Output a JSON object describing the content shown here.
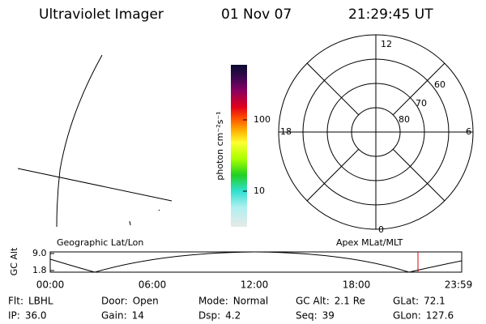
{
  "header": {
    "title": "Ultraviolet Imager",
    "date": "01 Nov 07",
    "time": "21:29:45 UT"
  },
  "map_labels": {
    "geographic": "Geographic Lat/Lon",
    "magnetic": "Apex MLat/MLT"
  },
  "colorbar": {
    "label": "photon cm⁻²s⁻¹",
    "ticks": [
      "100",
      "10"
    ]
  },
  "polar": {
    "mlt_labels": [
      "12",
      "18",
      "6",
      "0"
    ],
    "mlat_labels": [
      "60",
      "70",
      "80"
    ]
  },
  "altitude": {
    "label": "GC Alt",
    "ticks": [
      "9.0",
      "1.8"
    ],
    "time_ticks": [
      "00:00",
      "06:00",
      "12:00",
      "18:00",
      "23:59"
    ]
  },
  "footer": {
    "rows": [
      [
        {
          "label": "Flt:",
          "value": "LBHL"
        },
        {
          "label": "Door:",
          "value": "Open"
        },
        {
          "label": "Mode:",
          "value": "Normal"
        },
        {
          "label": "GC Alt:",
          "value": "2.1 Re"
        },
        {
          "label": "GLat:",
          "value": "72.1"
        }
      ],
      [
        {
          "label": "IP:",
          "value": "36.0"
        },
        {
          "label": "Gain:",
          "value": "14"
        },
        {
          "label": "Dsp:",
          "value": "4.2"
        },
        {
          "label": "Seq:",
          "value": "39"
        },
        {
          "label": "GLon:",
          "value": "127.6"
        }
      ]
    ]
  }
}
